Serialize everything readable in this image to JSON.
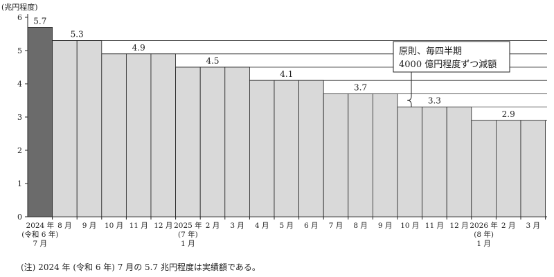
{
  "chart_data": {
    "type": "bar",
    "unit_label": "(兆円程度)",
    "ylim": [
      0,
      6
    ],
    "yticks": [
      "0",
      "1",
      "2",
      "3",
      "4",
      "5",
      "6"
    ],
    "grid": false,
    "categories": [
      [
        "2024 年",
        "(令和 6 年)",
        "7 月"
      ],
      [
        "8 月"
      ],
      [
        "9 月"
      ],
      [
        "10 月"
      ],
      [
        "11 月"
      ],
      [
        "12 月"
      ],
      [
        "2025 年",
        "(7 年)",
        "1 月"
      ],
      [
        "2 月"
      ],
      [
        "3 月"
      ],
      [
        "4 月"
      ],
      [
        "5 月"
      ],
      [
        "6 月"
      ],
      [
        "7 月"
      ],
      [
        "8 月"
      ],
      [
        "9 月"
      ],
      [
        "10 月"
      ],
      [
        "11 月"
      ],
      [
        "12 月"
      ],
      [
        "2026 年",
        "(8 年)",
        "1 月"
      ],
      [
        "2 月"
      ],
      [
        "3 月"
      ]
    ],
    "values": [
      5.7,
      5.3,
      5.3,
      4.9,
      4.9,
      4.9,
      4.5,
      4.5,
      4.5,
      4.1,
      4.1,
      4.1,
      3.7,
      3.7,
      3.7,
      3.3,
      3.3,
      3.3,
      2.9,
      2.9,
      2.9
    ],
    "highlight_index": 0,
    "colors": {
      "highlight": "#6b6b6b",
      "bar": "#d9d9d9",
      "stroke": "#222222"
    },
    "value_labels": [
      {
        "text": "5.7",
        "value": 5.7,
        "bar_index": 0
      },
      {
        "text": "5.3",
        "value": 5.3,
        "bar_index": 1.5
      },
      {
        "text": "4.9",
        "value": 4.9,
        "bar_index": 4
      },
      {
        "text": "4.5",
        "value": 4.5,
        "bar_index": 7
      },
      {
        "text": "4.1",
        "value": 4.1,
        "bar_index": 10
      },
      {
        "text": "3.7",
        "value": 3.7,
        "bar_index": 13
      },
      {
        "text": "3.3",
        "value": 3.3,
        "bar_index": 16
      },
      {
        "text": "2.9",
        "value": 2.9,
        "bar_index": 19
      }
    ],
    "annotation": {
      "lines": [
        "原則、毎四半期",
        "4000 億円程度ずつ減額"
      ]
    }
  },
  "note": "(注)   2024 年 (令和 6 年) 7 月の 5.7 兆円程度は実績額である。"
}
